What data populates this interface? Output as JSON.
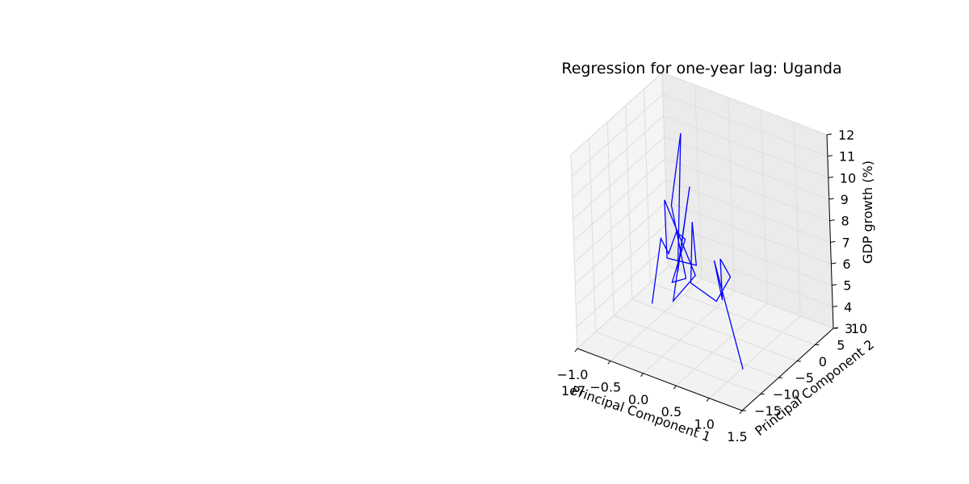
{
  "chart_data": {
    "type": "line",
    "projection": "3d",
    "title": "Regression for one-year lag: Uganda",
    "xlabel": "Principal Component 1",
    "ylabel": "Principal Component 2",
    "zlabel": "GDP growth (%)",
    "x_offset_label": "1e7",
    "xlim": [
      -1.0,
      1.5
    ],
    "ylim": [
      -15,
      10
    ],
    "zlim": [
      3,
      12
    ],
    "x_ticks": [
      "−1.0",
      "−0.5",
      "0.0",
      "0.5",
      "1.0",
      "1.5"
    ],
    "y_ticks": [
      "−15",
      "−10",
      "−5",
      "0",
      "5",
      "10"
    ],
    "z_ticks": [
      "3",
      "4",
      "5",
      "6",
      "7",
      "8",
      "9",
      "10",
      "11",
      "12"
    ],
    "grid": true,
    "line_color": "#0000ff",
    "series": [
      {
        "points": [
          [
            -0.64,
            -0.95,
            3.35
          ],
          [
            -0.48,
            -0.81,
            6.55
          ],
          [
            -0.36,
            -0.96,
            6.0
          ],
          [
            -0.22,
            -1.1,
            7.2
          ],
          [
            -0.09,
            -1.08,
            7.0
          ],
          [
            -0.35,
            -0.45,
            4.6
          ],
          [
            -0.13,
            -0.55,
            5.05
          ],
          [
            -0.25,
            -1.7,
            8.5
          ],
          [
            -0.07,
            -1.72,
            12.05
          ],
          [
            -0.26,
            -0.4,
            5.2
          ],
          [
            -0.05,
            -0.15,
            9.35
          ],
          [
            -0.34,
            -0.5,
            3.75
          ],
          [
            0.04,
            -0.95,
            5.45
          ],
          [
            -0.24,
            -3.65,
            9.05
          ],
          [
            -0.22,
            -3.85,
            6.4
          ],
          [
            0.18,
            -3.05,
            6.4
          ],
          [
            0.24,
            -4.8,
            8.75
          ],
          [
            0.2,
            -5.0,
            5.9
          ],
          [
            0.52,
            -3.9,
            5.25
          ],
          [
            0.88,
            -6.2,
            7.15
          ],
          [
            0.78,
            -7.0,
            8.0
          ],
          [
            0.78,
            -6.8,
            6.05
          ],
          [
            0.76,
            -8.3,
            8.1
          ],
          [
            0.98,
            -5.4,
            2.85
          ]
        ]
      }
    ]
  }
}
